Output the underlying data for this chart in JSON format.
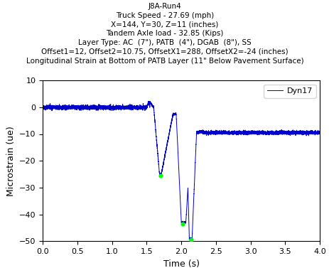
{
  "title_lines": [
    "J8A-Run4",
    "Truck Speed - 27.69 (mph)",
    "X=144, Y=30, Z=11 (inches)",
    "Tandem Axle load - 32.85 (Kips)",
    "Layer Type: AC  (7\"), PATB  (4\"), DGAB  (8\"), SS",
    "Offset1=12, Offset2=10.75, OffsetX1=288, OffsetX2=-24 (inches)",
    "Longitudinal Strain at Bottom of PATB Layer (11\" Below Pavement Surface)"
  ],
  "xlabel": "Time (s)",
  "ylabel": "Microstrain (ue)",
  "xlim": [
    0,
    4
  ],
  "ylim": [
    -50,
    10
  ],
  "xticks": [
    0,
    0.5,
    1.0,
    1.5,
    2.0,
    2.5,
    3.0,
    3.5,
    4.0
  ],
  "yticks": [
    -50,
    -40,
    -30,
    -20,
    -10,
    0,
    10
  ],
  "legend_label": "Dyn17",
  "line_color": "#0000CC",
  "marker_color": "#00FF00",
  "background_color": "#ffffff",
  "noise_amplitude": 0.7,
  "baseline_level": -0.1,
  "post_event_level": -9.5,
  "seed": 42,
  "title_fontsize": 7.5,
  "axis_fontsize": 9,
  "tick_fontsize": 8
}
